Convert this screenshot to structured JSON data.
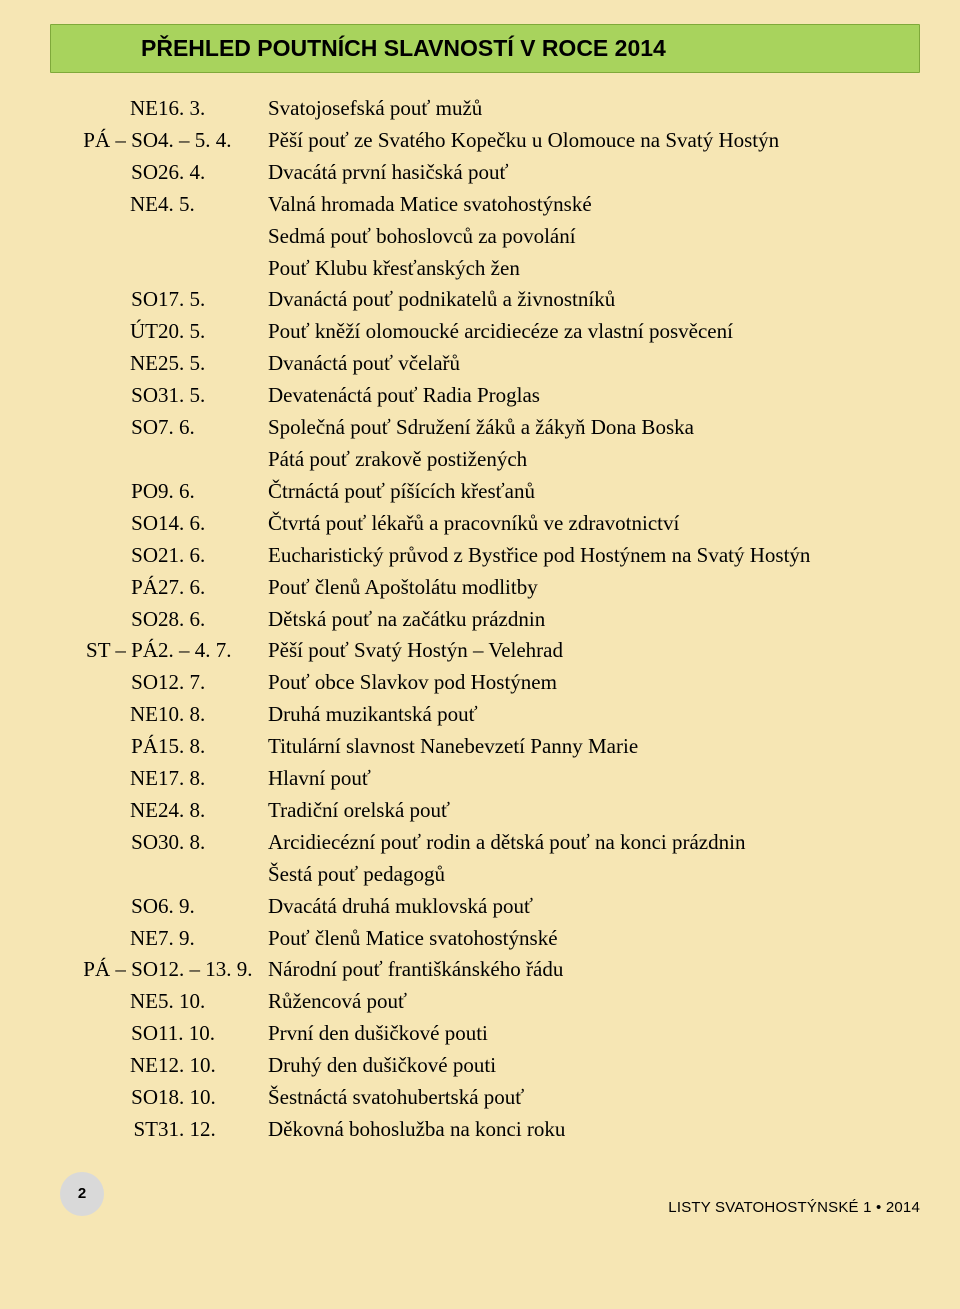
{
  "colors": {
    "page_bg": "#f6e6b4",
    "title_bg": "#a8d35d",
    "title_border": "#7fa93a",
    "text": "#000000",
    "badge_bg": "#d9d9d9"
  },
  "typography": {
    "body_font": "Georgia serif",
    "body_size_pt": 16,
    "title_font": "Arial",
    "title_size_pt": 18,
    "title_weight": "bold"
  },
  "title": "PŘEHLED POUTNÍCH SLAVNOSTÍ V ROCE 2014",
  "rows": [
    {
      "day": "NE",
      "date": "16. 3.",
      "desc": [
        "Svatojosefská pouť mužů"
      ]
    },
    {
      "day": "PÁ – SO",
      "date": "4. – 5. 4.",
      "desc": [
        "Pěší pouť ze Svatého Kopečku u Olomouce na Svatý Hostýn"
      ]
    },
    {
      "day": "SO",
      "date": "26. 4.",
      "desc": [
        "Dvacátá první hasičská pouť"
      ]
    },
    {
      "day": "NE",
      "date": "4. 5.",
      "desc": [
        "Valná hromada Matice svatohostýnské",
        "Sedmá pouť bohoslovců za povolání",
        "Pouť Klubu křesťanských žen"
      ]
    },
    {
      "day": "SO",
      "date": "17. 5.",
      "desc": [
        "Dvanáctá pouť podnikatelů a živnostníků"
      ]
    },
    {
      "day": "ÚT",
      "date": "20. 5.",
      "desc": [
        "Pouť kněží olomoucké arcidiecéze za vlastní posvěcení"
      ]
    },
    {
      "day": "NE",
      "date": "25. 5.",
      "desc": [
        "Dvanáctá pouť včelařů"
      ]
    },
    {
      "day": "SO",
      "date": "31. 5.",
      "desc": [
        "Devatenáctá pouť Radia Proglas"
      ]
    },
    {
      "day": "SO",
      "date": "7. 6.",
      "desc": [
        "Společná pouť Sdružení žáků a žákyň Dona Boska",
        "Pátá pouť zrakově postižených"
      ]
    },
    {
      "day": "PO",
      "date": "9. 6.",
      "desc": [
        "Čtrnáctá pouť píšících křesťanů"
      ]
    },
    {
      "day": "SO",
      "date": "14. 6.",
      "desc": [
        "Čtvrtá pouť lékařů a pracovníků ve zdravotnictví"
      ]
    },
    {
      "day": "SO",
      "date": "21. 6.",
      "desc": [
        "Eucharistický průvod z Bystřice pod Hostýnem na Svatý Hostýn"
      ]
    },
    {
      "day": "PÁ",
      "date": "27. 6.",
      "desc": [
        "Pouť členů Apoštolátu modlitby"
      ]
    },
    {
      "day": "SO",
      "date": "28. 6.",
      "desc": [
        "Dětská pouť na začátku prázdnin"
      ]
    },
    {
      "day": "ST – PÁ",
      "date": "2. – 4. 7.",
      "desc": [
        "Pěší pouť Svatý Hostýn – Velehrad"
      ]
    },
    {
      "day": "SO",
      "date": "12. 7.",
      "desc": [
        "Pouť obce Slavkov pod Hostýnem"
      ]
    },
    {
      "day": "NE",
      "date": "10. 8.",
      "desc": [
        "Druhá muzikantská pouť"
      ]
    },
    {
      "day": "PÁ",
      "date": "15. 8.",
      "desc": [
        "Titulární slavnost Nanebevzetí Panny Marie"
      ]
    },
    {
      "day": "NE",
      "date": "17. 8.",
      "desc": [
        "Hlavní pouť"
      ]
    },
    {
      "day": "NE",
      "date": "24. 8.",
      "desc": [
        "Tradiční orelská pouť"
      ]
    },
    {
      "day": "SO",
      "date": "30. 8.",
      "desc": [
        "Arcidiecézní pouť rodin a dětská pouť na konci prázdnin",
        "Šestá pouť pedagogů"
      ]
    },
    {
      "day": "SO",
      "date": "6. 9.",
      "desc": [
        "Dvacátá druhá muklovská pouť"
      ]
    },
    {
      "day": "NE",
      "date": "7. 9.",
      "desc": [
        "Pouť členů Matice svatohostýnské"
      ]
    },
    {
      "day": "PÁ – SO",
      "date": "12. – 13. 9.",
      "desc": [
        "Národní pouť františkánského řádu"
      ]
    },
    {
      "day": "NE",
      "date": "5. 10.",
      "desc": [
        "Růžencová pouť"
      ]
    },
    {
      "day": "SO",
      "date": "11. 10.",
      "desc": [
        "První den dušičkové pouti"
      ]
    },
    {
      "day": "NE",
      "date": "12. 10.",
      "desc": [
        "Druhý den dušičkové pouti"
      ]
    },
    {
      "day": "SO",
      "date": "18. 10.",
      "desc": [
        "Šestnáctá svatohubertská pouť"
      ]
    },
    {
      "day": "ST",
      "date": "31. 12.",
      "desc": [
        "Děkovná bohoslužba na konci roku"
      ]
    }
  ],
  "footer": {
    "page": "2",
    "publication": "LISTY SVATOHOSTÝNSKÉ 1 • 2014"
  }
}
